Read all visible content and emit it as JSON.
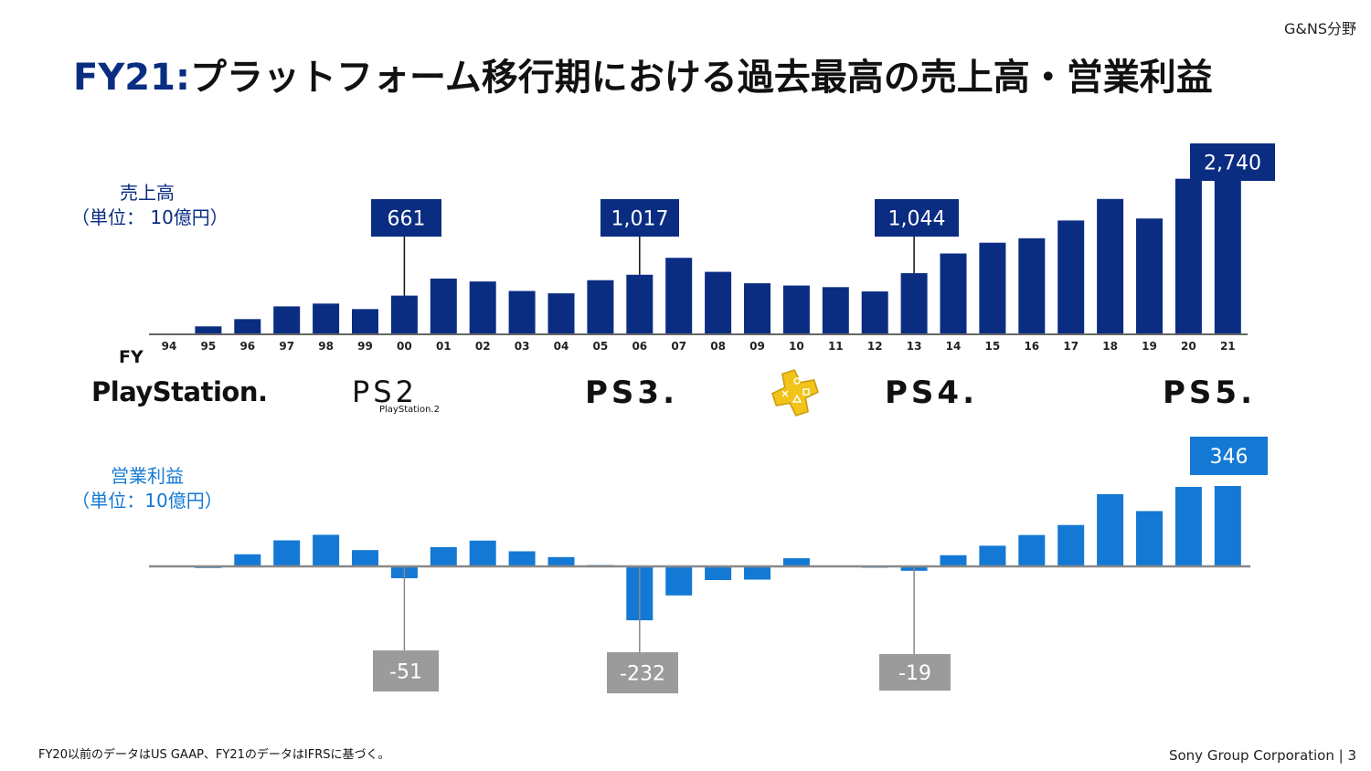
{
  "segment": "G&NS分野",
  "title": {
    "prefix": "FY21:",
    "main": "プラットフォーム移行期における過去最高の売上高・営業利益"
  },
  "revenue_label": {
    "line1": "売上高",
    "line2": "（単位： 10億円）"
  },
  "op_label": {
    "line1": "営業利益",
    "line2": "（単位：10億円）"
  },
  "fy_label": "FY",
  "logos": {
    "ps": "PlayStation.",
    "ps2": "PS2",
    "ps2_sub": "PlayStation.2",
    "ps3": "PS3.",
    "psplus": "plus-logo-icon",
    "ps4": "PS4.",
    "ps5": "PS5."
  },
  "footnote": "FY20以前のデータはUS GAAP、FY21のデータはIFRSに基づく。",
  "corp": "Sony Group Corporation | 3",
  "colors": {
    "revenue": "#0a2d82",
    "op_profit": "#1479d4",
    "negative_callout": "#9b9b9b",
    "psplus": "#f2c318"
  },
  "chart_data": [
    {
      "type": "bar",
      "categories": [
        "94",
        "95",
        "96",
        "97",
        "98",
        "99",
        "00",
        "01",
        "02",
        "03",
        "04",
        "05",
        "06",
        "07",
        "08",
        "09",
        "10",
        "11",
        "12",
        "13",
        "14",
        "15",
        "16",
        "17",
        "18",
        "19",
        "20",
        "21"
      ],
      "values": [
        5,
        136,
        260,
        477,
        525,
        431,
        661,
        952,
        902,
        740,
        700,
        924,
        1017,
        1306,
        1067,
        872,
        833,
        806,
        732,
        1044,
        1380,
        1564,
        1640,
        1943,
        2311,
        1977,
        2656,
        2740
      ],
      "ylim": [
        0,
        2900
      ],
      "callouts": [
        {
          "category": "00",
          "label": "661"
        },
        {
          "category": "06",
          "label": "1,017"
        },
        {
          "category": "13",
          "label": "1,044"
        },
        {
          "category": "21",
          "label": "2,740"
        }
      ]
    },
    {
      "type": "bar",
      "categories": [
        "94",
        "95",
        "96",
        "97",
        "98",
        "99",
        "00",
        "01",
        "02",
        "03",
        "04",
        "05",
        "06",
        "07",
        "08",
        "09",
        "10",
        "11",
        "12",
        "13",
        "14",
        "15",
        "16",
        "17",
        "18",
        "19",
        "20",
        "21"
      ],
      "values": [
        0,
        -7,
        52,
        112,
        136,
        70,
        -51,
        83,
        111,
        65,
        40,
        5,
        -232,
        -125,
        -59,
        -57,
        35,
        0,
        -2,
        -19,
        48,
        89,
        135,
        178,
        311,
        238,
        342,
        346
      ],
      "ylim": [
        -400,
        400
      ],
      "callouts": [
        {
          "category": "00",
          "label": "-51"
        },
        {
          "category": "06",
          "label": "-232"
        },
        {
          "category": "13",
          "label": "-19"
        },
        {
          "category": "21",
          "label": "346"
        }
      ]
    }
  ]
}
